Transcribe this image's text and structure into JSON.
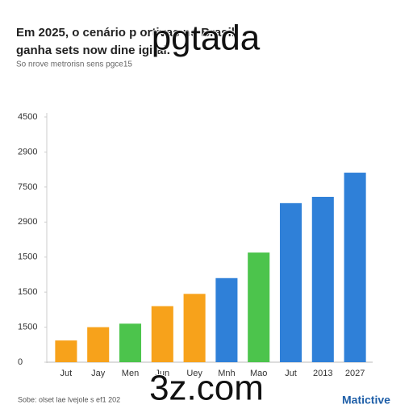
{
  "chart_data": {
    "type": "bar",
    "title_lines": [
      "Em 2025, o cenário p          ortivas no Brasil",
      "ganha sets now dine                   igital."
    ],
    "subtitle": "So nrove metrorisn sens pgce15",
    "watermarks": [
      "pgtada",
      "3z.com"
    ],
    "categories": [
      "Jut",
      "Jay",
      "Men",
      "Jun",
      "Uey",
      "Mnh",
      "Mao",
      "Jut",
      "2013",
      "2027"
    ],
    "values": [
      0.62,
      1.0,
      1.1,
      1.6,
      1.95,
      2.4,
      3.13,
      4.54,
      4.72,
      5.41
    ],
    "colors": [
      "#f7a21b",
      "#f7a21b",
      "#4cc44c",
      "#f7a21b",
      "#f7a21b",
      "#2f80d8",
      "#4cc44c",
      "#2f80d8",
      "#2f80d8",
      "#2f80d8"
    ],
    "ylim": [
      0,
      7
    ],
    "yticks": [
      0,
      {
        "value": 1,
        "label": "1500"
      },
      {
        "value": 2,
        "label": "1500"
      },
      {
        "value": 3,
        "label": "1500"
      },
      {
        "value": 4,
        "label": "2900"
      },
      {
        "value": 5,
        "label": "7500"
      },
      {
        "value": 6,
        "label": "2900"
      },
      {
        "value": 7,
        "label": "4500"
      }
    ],
    "source": "Sobe: olset lae lvejole s ef1 202",
    "brand": "Matictive"
  }
}
